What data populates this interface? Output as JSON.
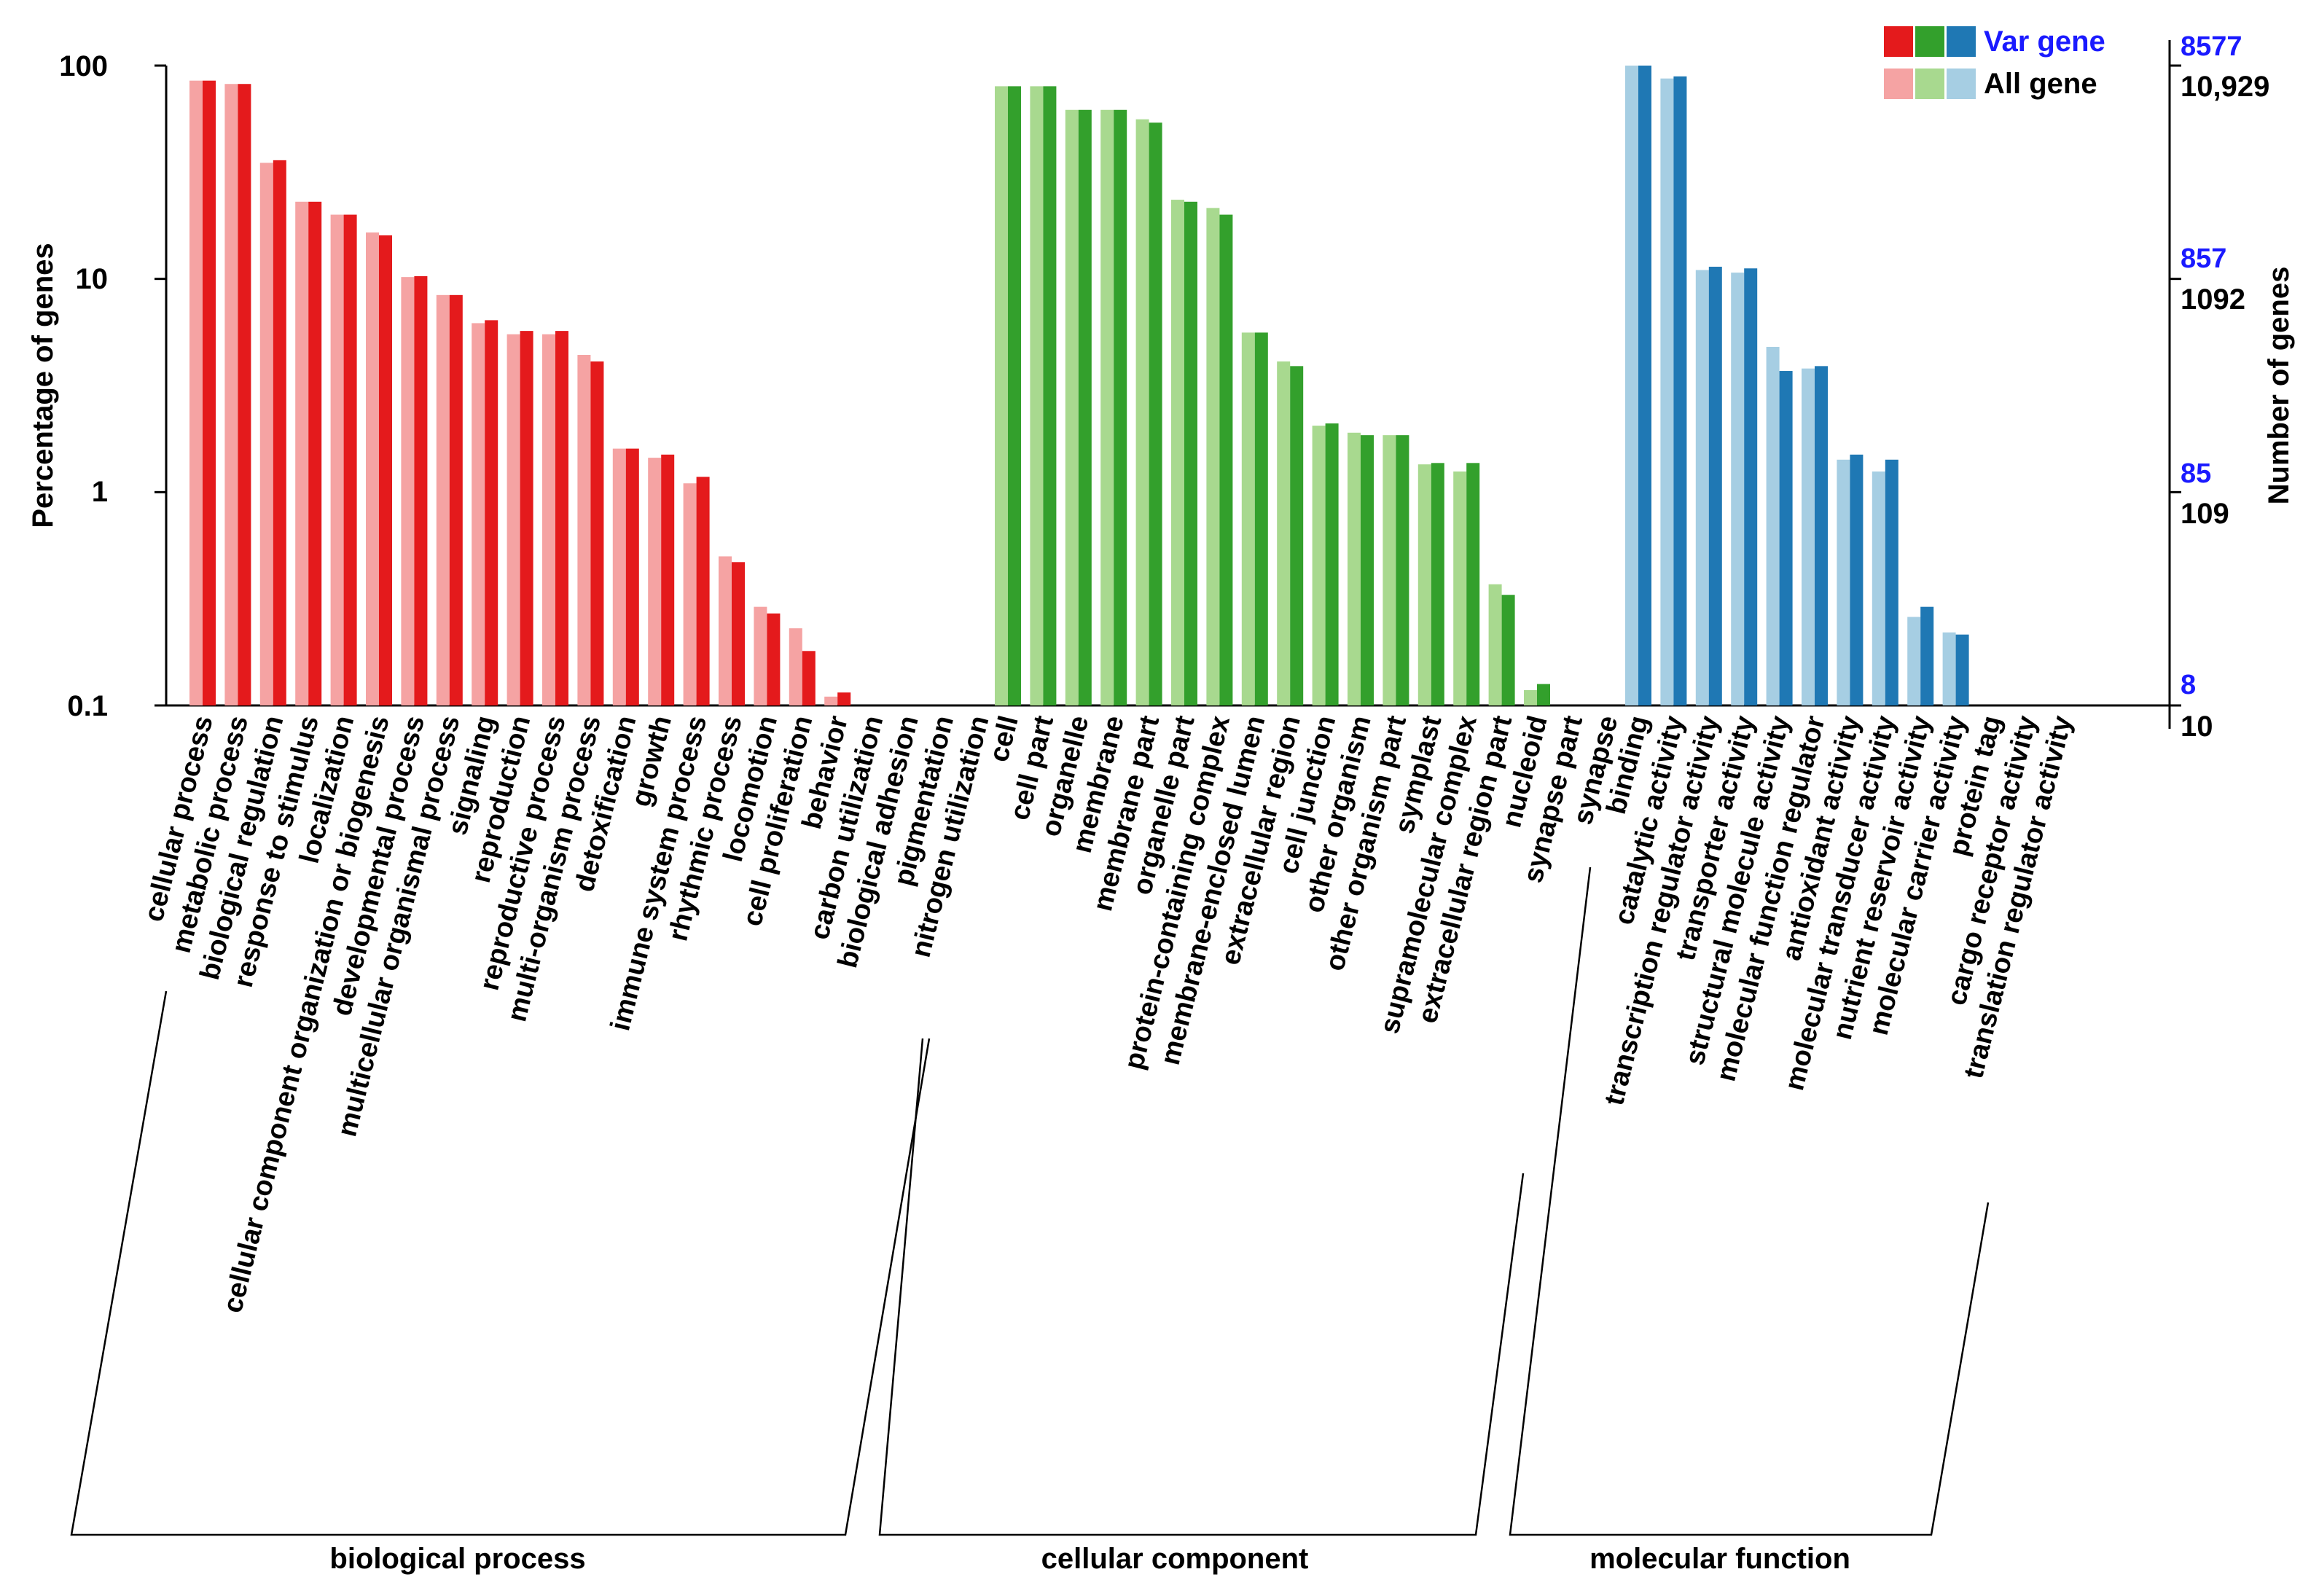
{
  "chart_data": {
    "type": "bar",
    "scale": "log",
    "ylabel": "Percentage of genes",
    "y2label": "Number of genes",
    "ylim": [
      0.1,
      100
    ],
    "y_ticks": [
      "100",
      "10",
      "1",
      "0.1"
    ],
    "y2_ticks_var": [
      "8577",
      "857",
      "85",
      "8"
    ],
    "y2_ticks_all": [
      "10,929",
      "1092",
      "109",
      "10"
    ],
    "legend": {
      "position": "top-right",
      "var_label": "Var gene",
      "all_label": "All gene"
    },
    "colors": {
      "bp_var": "#e41a1c",
      "bp_all": "#f5a3a3",
      "cc_var": "#33a02c",
      "cc_all": "#a8d98f",
      "mf_var": "#1f78b4",
      "mf_all": "#a6cee3",
      "legend_blue": "#1a1aff"
    },
    "groups": [
      {
        "key": "bp",
        "name": "biological process",
        "categories": [
          "cellular process",
          "metabolic process",
          "biological regulation",
          "response to stimulus",
          "localization",
          "cellular component organization or biogenesis",
          "developmental process",
          "multicellular organismal process",
          "signaling",
          "reproduction",
          "reproductive process",
          "multi-organism process",
          "detoxification",
          "growth",
          "immune system process",
          "rhythmic process",
          "locomotion",
          "cell proliferation",
          "behavior",
          "carbon utilization",
          "biological adhesion",
          "pigmentation",
          "nitrogen utilization"
        ],
        "all_gene": [
          85,
          82,
          35,
          23,
          20,
          16.5,
          10.2,
          8.4,
          6.2,
          5.5,
          5.5,
          4.4,
          1.6,
          1.45,
          1.1,
          0.5,
          0.29,
          0.23,
          0.11,
          null,
          null,
          null,
          null
        ],
        "var_gene": [
          85,
          82,
          36,
          23,
          20,
          16,
          10.3,
          8.4,
          6.4,
          5.7,
          5.7,
          4.1,
          1.6,
          1.5,
          1.18,
          0.47,
          0.27,
          0.18,
          0.115,
          null,
          null,
          null,
          null
        ]
      },
      {
        "key": "cc",
        "name": "cellular component",
        "categories": [
          "cell",
          "cell part",
          "organelle",
          "membrane",
          "membrane part",
          "organelle part",
          "protein-containing complex",
          "membrane-enclosed lumen",
          "extracellular region",
          "cell junction",
          "other organism",
          "other organism part",
          "symplast",
          "supramolecular complex",
          "extracellular region part",
          "nucleoid",
          "synapse part",
          "synapse"
        ],
        "all_gene": [
          80,
          80,
          62,
          62,
          56,
          23.5,
          21.5,
          5.6,
          4.1,
          2.05,
          1.9,
          1.85,
          1.35,
          1.25,
          0.37,
          0.118,
          null,
          null
        ],
        "var_gene": [
          80,
          80,
          62,
          62,
          54,
          23,
          20,
          5.6,
          3.9,
          2.1,
          1.85,
          1.85,
          1.37,
          1.37,
          0.33,
          0.126,
          null,
          null
        ]
      },
      {
        "key": "mf",
        "name": "molecular function",
        "categories": [
          "binding",
          "catalytic activity",
          "transcription regulator activity",
          "transporter activity",
          "structural molecule activity",
          "molecular function regulator",
          "antioxidant activity",
          "molecular transducer activity",
          "nutrient reservoir activity",
          "molecular carrier activity",
          "protein tag",
          "cargo receptor activity",
          "translation regulator activity"
        ],
        "all_gene": [
          100,
          87,
          11,
          10.7,
          4.8,
          3.8,
          1.42,
          1.25,
          0.26,
          0.22,
          null,
          null,
          null
        ],
        "var_gene": [
          100,
          89,
          11.4,
          11.2,
          3.7,
          3.9,
          1.5,
          1.42,
          0.29,
          0.215,
          null,
          null,
          null
        ]
      }
    ]
  }
}
